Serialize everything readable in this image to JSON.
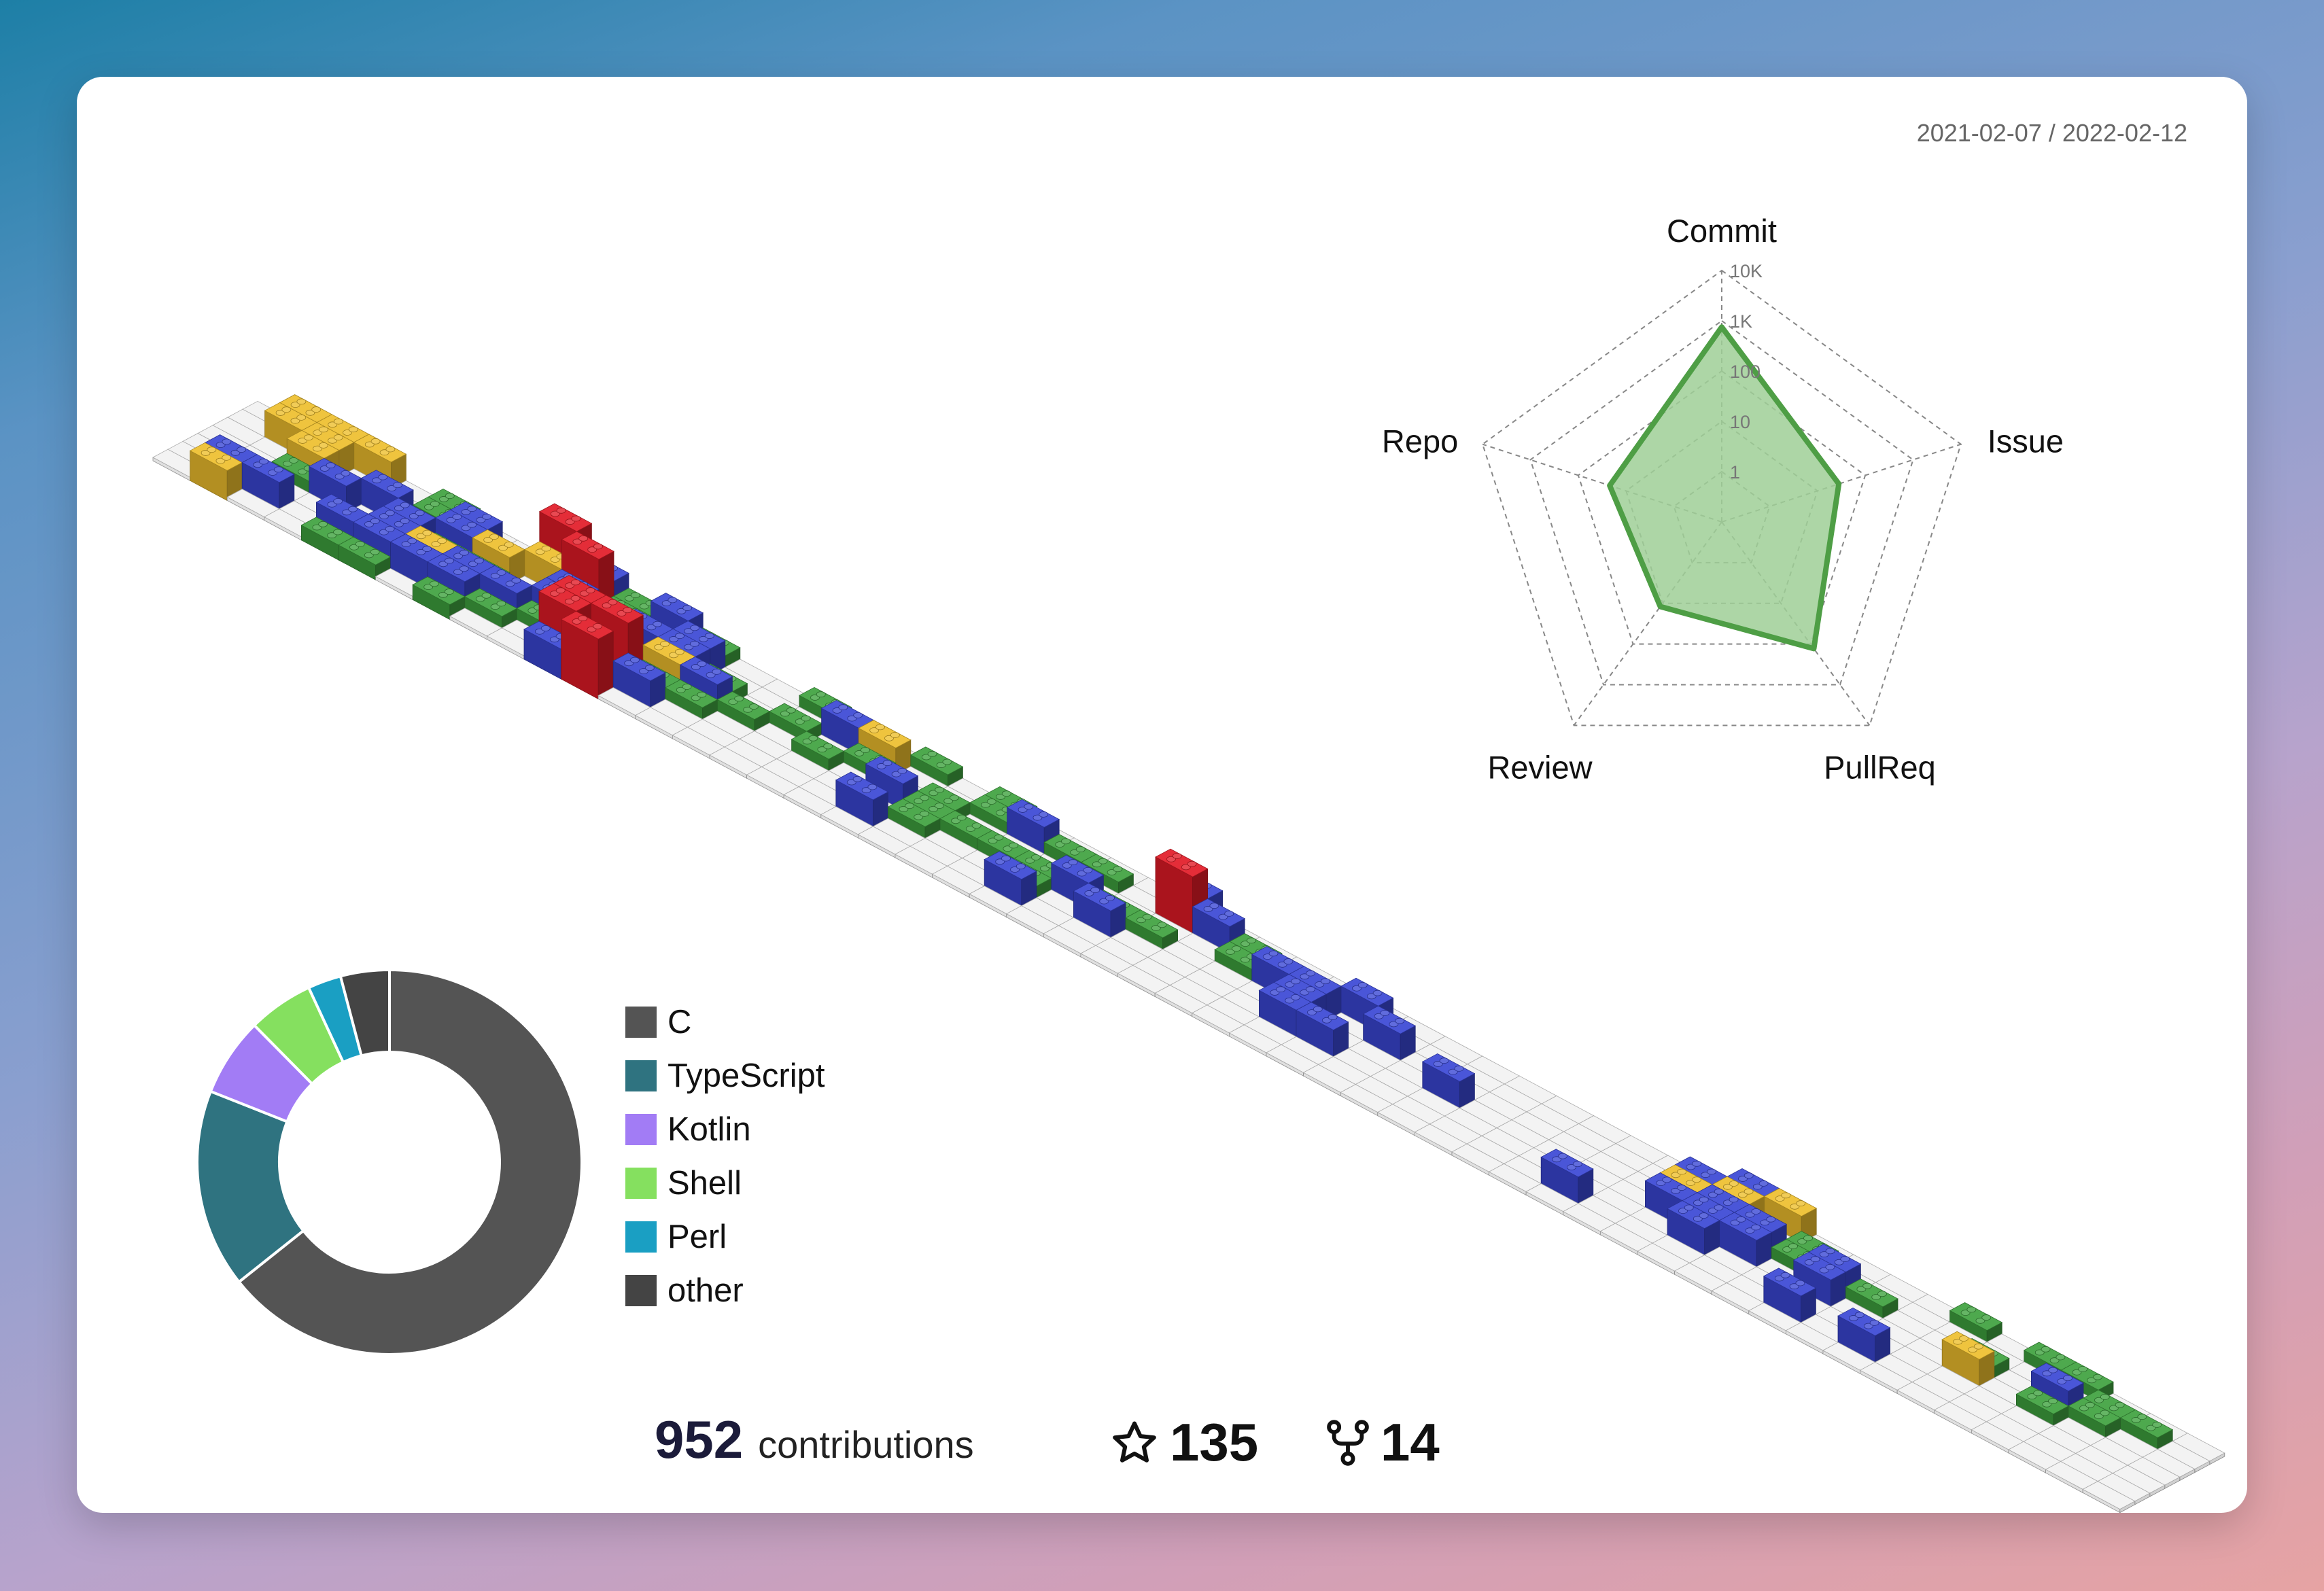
{
  "period": "2021-02-07 / 2022-02-12",
  "radar": {
    "axes": [
      {
        "label": "Commit",
        "value": 750
      },
      {
        "label": "Issue",
        "value": 28
      },
      {
        "label": "PullReq",
        "value": 130
      },
      {
        "label": "Review",
        "value": 12
      },
      {
        "label": "Repo",
        "value": 22
      }
    ],
    "ticks": [
      "1",
      "10",
      "100",
      "1K",
      "10K"
    ],
    "scale": "log",
    "color": "#4e9e45",
    "fill": "#9fcf97"
  },
  "chart_data": [
    {
      "type": "radar",
      "categories": [
        "Commit",
        "Issue",
        "PullReq",
        "Review",
        "Repo"
      ],
      "values": [
        750,
        28,
        130,
        12,
        22
      ],
      "scale": "log",
      "range": [
        1,
        10000
      ]
    },
    {
      "type": "pie",
      "labels": [
        "C",
        "TypeScript",
        "Kotlin",
        "Shell",
        "Perl",
        "other"
      ],
      "values": [
        64.3,
        16.7,
        6.6,
        5.5,
        2.8,
        4.1
      ],
      "hole": 0.56
    }
  ],
  "languages": [
    {
      "name": "C",
      "color": "#545454"
    },
    {
      "name": "TypeScript",
      "color": "#2f7380"
    },
    {
      "name": "Kotlin",
      "color": "#a27cf5"
    },
    {
      "name": "Shell",
      "color": "#85e05f"
    },
    {
      "name": "Perl",
      "color": "#1a9fc3"
    },
    {
      "name": "other",
      "color": "#444444"
    }
  ],
  "footer": {
    "contributions": "952",
    "contributions_label": "contributions",
    "stars": "135",
    "forks": "14"
  },
  "calendar": {
    "weeks": 53,
    "level_colors": [
      "#f3f3f3",
      "#3fa23f",
      "#3a47d5",
      "#eebf2d",
      "#e21b27"
    ],
    "cells": [
      [
        0,
        0,
        0,
        0,
        0,
        0,
        0
      ],
      [
        3,
        2,
        0,
        0,
        0,
        3,
        3
      ],
      [
        0,
        2,
        0,
        1,
        3,
        3,
        3
      ],
      [
        0,
        0,
        0,
        2,
        0,
        0,
        3
      ],
      [
        1,
        2,
        0,
        0,
        2,
        0,
        0
      ],
      [
        1,
        2,
        2,
        2,
        0,
        1,
        1
      ],
      [
        0,
        2,
        3,
        1,
        2,
        2,
        0
      ],
      [
        1,
        2,
        2,
        1,
        3,
        0,
        0
      ],
      [
        0,
        1,
        2,
        0,
        0,
        3,
        4
      ],
      [
        0,
        0,
        1,
        2,
        2,
        4,
        2
      ],
      [
        2,
        4,
        4,
        2,
        1,
        1,
        1
      ],
      [
        4,
        1,
        4,
        1,
        2,
        0,
        2
      ],
      [
        0,
        2,
        1,
        3,
        2,
        2,
        1
      ],
      [
        0,
        0,
        1,
        2,
        1,
        0,
        0
      ],
      [
        0,
        0,
        0,
        1,
        0,
        0,
        0
      ],
      [
        0,
        0,
        0,
        0,
        1,
        0,
        1
      ],
      [
        0,
        0,
        0,
        1,
        0,
        2,
        0
      ],
      [
        0,
        0,
        0,
        0,
        1,
        3,
        0
      ],
      [
        0,
        2,
        0,
        2,
        0,
        0,
        1
      ],
      [
        0,
        0,
        1,
        1,
        1,
        0,
        0
      ],
      [
        0,
        0,
        0,
        1,
        0,
        1,
        1
      ],
      [
        0,
        0,
        0,
        1,
        0,
        2,
        0
      ],
      [
        0,
        2,
        1,
        1,
        0,
        1,
        0
      ],
      [
        0,
        0,
        0,
        2,
        0,
        1,
        0
      ],
      [
        0,
        0,
        2,
        1,
        0,
        0,
        0
      ],
      [
        0,
        0,
        0,
        1,
        0,
        4,
        2
      ],
      [
        0,
        0,
        0,
        0,
        0,
        2,
        0
      ],
      [
        0,
        0,
        0,
        0,
        1,
        1,
        0
      ],
      [
        0,
        0,
        0,
        0,
        2,
        0,
        0
      ],
      [
        0,
        0,
        2,
        2,
        2,
        0,
        0
      ],
      [
        0,
        0,
        2,
        0,
        0,
        2,
        0
      ],
      [
        0,
        0,
        0,
        0,
        2,
        0,
        0
      ],
      [
        0,
        0,
        0,
        0,
        0,
        0,
        0
      ],
      [
        0,
        0,
        0,
        2,
        0,
        0,
        0
      ],
      [
        0,
        0,
        0,
        0,
        0,
        0,
        0
      ],
      [
        0,
        0,
        0,
        0,
        0,
        0,
        0
      ],
      [
        0,
        0,
        0,
        0,
        0,
        0,
        0
      ],
      [
        0,
        2,
        0,
        0,
        0,
        0,
        0
      ],
      [
        0,
        0,
        0,
        0,
        0,
        0,
        0
      ],
      [
        0,
        0,
        0,
        2,
        3,
        2,
        0
      ],
      [
        0,
        0,
        2,
        2,
        2,
        3,
        2
      ],
      [
        0,
        0,
        0,
        2,
        2,
        0,
        3
      ],
      [
        0,
        0,
        0,
        0,
        1,
        1,
        0
      ],
      [
        0,
        2,
        0,
        2,
        2,
        0,
        0
      ],
      [
        0,
        0,
        0,
        0,
        1,
        0,
        0
      ],
      [
        0,
        2,
        0,
        0,
        0,
        0,
        0
      ],
      [
        0,
        0,
        0,
        0,
        0,
        0,
        1
      ],
      [
        0,
        0,
        0,
        3,
        1,
        0,
        0
      ],
      [
        0,
        0,
        0,
        0,
        0,
        0,
        1
      ],
      [
        0,
        0,
        0,
        1,
        2,
        0,
        1
      ],
      [
        0,
        0,
        0,
        0,
        1,
        1,
        0
      ],
      [
        0,
        0,
        0,
        0,
        0,
        1,
        0
      ],
      [
        0,
        0,
        0,
        0,
        0,
        0,
        0
      ]
    ]
  }
}
